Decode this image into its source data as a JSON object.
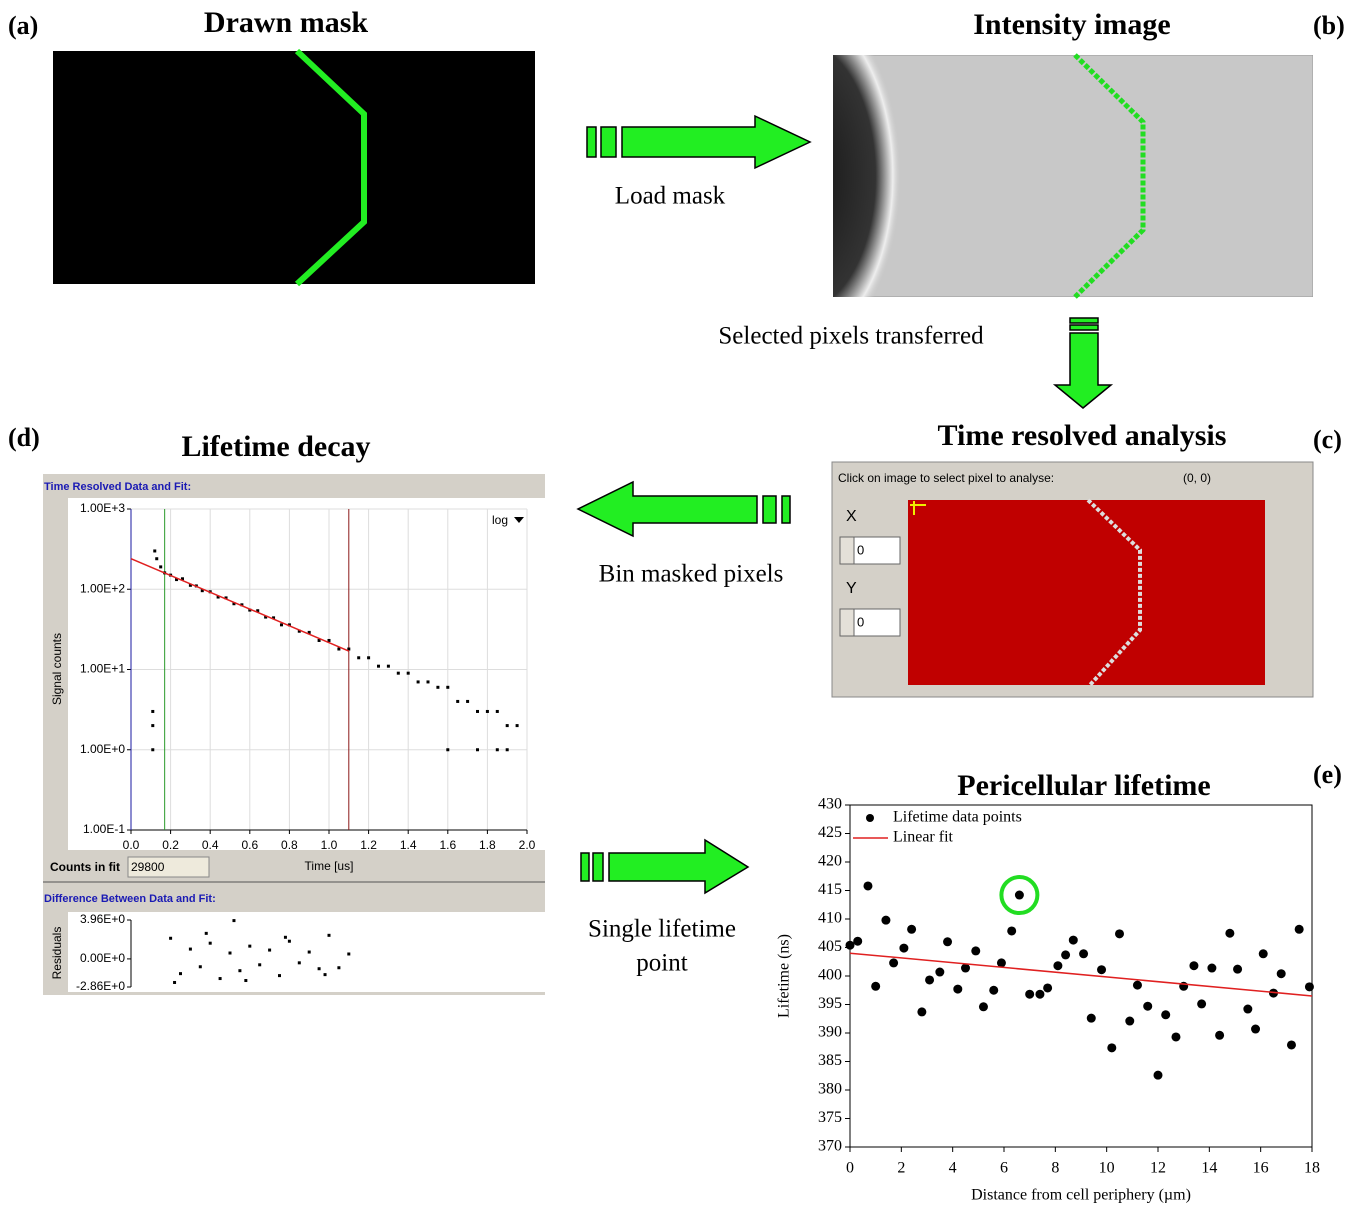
{
  "panels": {
    "a": {
      "label": "(a)",
      "title": "Drawn mask"
    },
    "b": {
      "label": "(b)",
      "title": "Intensity image"
    },
    "c": {
      "label": "(c)",
      "title": "Time resolved analysis",
      "prompt": "Click on image to select pixel to analyse:",
      "coords": "(0, 0)",
      "x_label": "X",
      "x_value": "0",
      "y_label": "Y",
      "y_value": "0"
    },
    "d": {
      "label": "(d)",
      "title": "Lifetime decay"
    },
    "e": {
      "label": "(e)"
    }
  },
  "arrows": {
    "load": "Load mask",
    "transfer": "Selected pixels transferred",
    "bin": "Bin masked pixels",
    "single": [
      "Single lifetime",
      "point"
    ]
  },
  "chart_data": [
    {
      "type": "scatter",
      "title": "Time Resolved Data and Fit:",
      "x_label": "Time [us]",
      "y_label": "Signal counts",
      "scale_menu": "log",
      "log_y": true,
      "grid": true,
      "counts_label": "Counts in fit",
      "counts_value": "29800",
      "xlim": [
        0,
        2
      ],
      "ylim": [
        0.1,
        1000
      ],
      "xticks": [
        {
          "value": 0,
          "label": "0.0"
        },
        0.2,
        0.4,
        0.6,
        0.8,
        {
          "value": 1,
          "label": "1.0"
        },
        1.2,
        1.4,
        1.6,
        1.8,
        {
          "value": 2,
          "label": "2.0"
        }
      ],
      "yticks": [
        {
          "value": 0.1,
          "label": "1.00E-1"
        },
        {
          "value": 1,
          "label": "1.00E+0"
        },
        {
          "value": 10,
          "label": "1.00E+1"
        },
        {
          "value": 100,
          "label": "1.00E+2"
        },
        {
          "value": 1000,
          "label": "1.00E+3"
        }
      ],
      "cursors": [
        {
          "x": 0,
          "color": "#1a1aa0"
        },
        {
          "x": 0.17,
          "color": "#2a9a2a"
        },
        {
          "x": 1.1,
          "color": "#8b1a1a"
        }
      ],
      "series": [
        {
          "color": "#000000",
          "x": [
            0.11,
            0.11,
            0.11,
            0.12,
            0.13,
            0.15,
            0.17,
            0.2,
            0.23,
            0.26,
            0.3,
            0.33,
            0.36,
            0.4,
            0.44,
            0.48,
            0.52,
            0.56,
            0.6,
            0.64,
            0.68,
            0.72,
            0.76,
            0.8,
            0.85,
            0.9,
            0.95,
            1.0,
            1.05,
            1.1,
            1.15,
            1.2,
            1.25,
            1.3,
            1.35,
            1.4,
            1.45,
            1.5,
            1.55,
            1.6,
            1.65,
            1.7,
            1.75,
            1.8,
            1.85,
            1.9,
            1.95,
            1.6,
            1.75,
            1.85,
            1.9
          ],
          "values": [
            3,
            2,
            1,
            300,
            240,
            190,
            160,
            150,
            132,
            135,
            112,
            110,
            96,
            93,
            80,
            78,
            66,
            64,
            55,
            54,
            45,
            44,
            36,
            36,
            30,
            29,
            23,
            23,
            18,
            18,
            14,
            14,
            11,
            11,
            9,
            9,
            7,
            7,
            6,
            6,
            4,
            4,
            3,
            3,
            3,
            2,
            2,
            1,
            1,
            1,
            1
          ]
        },
        {
          "type": "line",
          "color": "#e02020",
          "x": [
            0,
            1.1
          ],
          "values": [
            240,
            17
          ]
        }
      ]
    },
    {
      "type": "scatter",
      "title": "Difference Between Data and Fit:",
      "y_label": "Residuals",
      "xlim": [
        0,
        2
      ],
      "ylim": [
        -2.86,
        3.96
      ],
      "yticks": [
        {
          "value": 3.96,
          "label": "3.96E+0"
        },
        {
          "value": 0,
          "label": "0.00E+0"
        },
        {
          "value": -2.86,
          "label": "-2.86E+0"
        }
      ],
      "series": [
        {
          "color": "#000000",
          "x": [
            0.2,
            0.25,
            0.3,
            0.35,
            0.4,
            0.45,
            0.5,
            0.52,
            0.55,
            0.6,
            0.65,
            0.7,
            0.75,
            0.8,
            0.85,
            0.9,
            0.95,
            1.0,
            1.05,
            1.1,
            0.22,
            0.38,
            0.58,
            0.78,
            0.98
          ],
          "values": [
            2.1,
            -1.5,
            1.0,
            -0.8,
            1.6,
            -2.0,
            0.6,
            3.9,
            -1.2,
            1.3,
            -0.6,
            0.9,
            -1.7,
            1.8,
            -0.4,
            0.7,
            -1.0,
            2.4,
            -0.9,
            0.5,
            -2.4,
            2.6,
            -2.2,
            2.2,
            -1.6
          ]
        }
      ]
    },
    {
      "type": "scatter",
      "title": "Pericellular lifetime",
      "x_label": "Distance from cell periphery (µm)",
      "y_label": "Lifetime (ns)",
      "xlim": [
        0,
        18
      ],
      "ylim": [
        370,
        430
      ],
      "xticks": [
        0,
        2,
        4,
        6,
        8,
        10,
        12,
        14,
        16,
        18
      ],
      "yticks": [
        370,
        375,
        380,
        385,
        390,
        395,
        400,
        405,
        410,
        415,
        420,
        425,
        430
      ],
      "highlight": {
        "index": 19,
        "color": "#22dd22"
      },
      "series": [
        {
          "name": "Lifetime data points",
          "color": "#000000",
          "x": [
            0,
            0.3,
            0.7,
            1.0,
            1.4,
            1.7,
            2.1,
            2.4,
            2.8,
            3.1,
            3.5,
            3.8,
            4.2,
            4.5,
            4.9,
            5.2,
            5.6,
            5.9,
            6.3,
            6.6,
            7.0,
            7.4,
            7.7,
            8.1,
            8.4,
            8.7,
            9.1,
            9.4,
            9.8,
            10.2,
            10.5,
            10.9,
            11.2,
            11.6,
            12.0,
            12.3,
            12.7,
            13.0,
            13.4,
            13.7,
            14.1,
            14.4,
            14.8,
            15.1,
            15.5,
            15.8,
            16.1,
            16.5,
            16.8,
            17.2,
            17.5,
            17.9
          ],
          "values": [
            405.4,
            406.1,
            415.8,
            398.2,
            409.8,
            402.3,
            404.9,
            408.2,
            393.7,
            399.3,
            400.7,
            406.0,
            397.7,
            401.4,
            404.4,
            394.6,
            397.5,
            402.3,
            407.9,
            414.2,
            396.8,
            396.8,
            397.9,
            401.8,
            403.7,
            406.3,
            403.9,
            392.6,
            401.1,
            387.4,
            407.4,
            392.1,
            398.4,
            394.7,
            382.6,
            393.2,
            389.3,
            398.2,
            401.8,
            395.1,
            401.4,
            389.6,
            407.5,
            401.2,
            394.2,
            390.7,
            403.9,
            397.0,
            400.4,
            387.9,
            408.2,
            398.1
          ]
        },
        {
          "name": "Linear fit",
          "type": "line",
          "color": "#e02020",
          "x": [
            0,
            18
          ],
          "values": [
            404,
            396.5
          ]
        }
      ]
    }
  ]
}
